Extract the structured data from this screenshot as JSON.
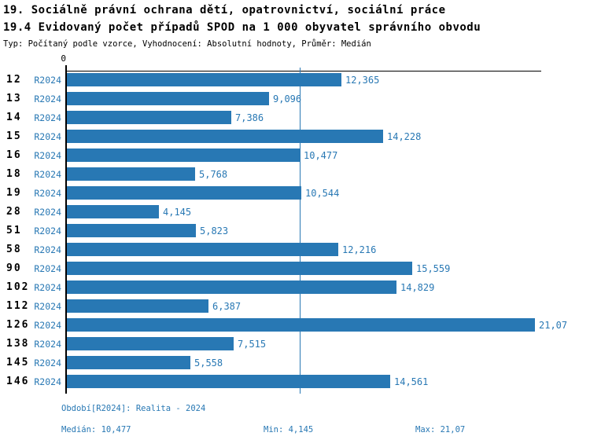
{
  "header": {
    "title1": "19. Sociálně právní ochrana dětí, opatrovnictví, sociální práce",
    "title2": "19.4 Evidovaný počet případů SPOD na 1 000 obyvatel správního obvodu",
    "meta": "Typ: Počítaný podle vzorce, Vyhodnocení: Absolutní hodnoty, Průměr: Medián"
  },
  "chart_data": {
    "type": "bar",
    "orientation": "horizontal",
    "title": "19.4 Evidovaný počet případů SPOD na 1 000 obyvatel správního obvodu",
    "series_label": "R2024",
    "categories": [
      "12",
      "13",
      "14",
      "15",
      "16",
      "18",
      "19",
      "28",
      "51",
      "58",
      "90",
      "102",
      "112",
      "126",
      "138",
      "145",
      "146"
    ],
    "values": [
      12.365,
      9.096,
      7.386,
      14.228,
      10.477,
      5.768,
      10.544,
      4.145,
      5.823,
      12.216,
      15.559,
      14.829,
      6.387,
      21.07,
      7.515,
      5.558,
      14.561
    ],
    "value_labels": [
      "12,365",
      "9,096",
      "7,386",
      "14,228",
      "10,477",
      "5,768",
      "10,544",
      "4,145",
      "5,823",
      "12,216",
      "15,559",
      "14,829",
      "6,387",
      "21,07",
      "7,515",
      "5,558",
      "14,561"
    ],
    "axis": {
      "zero_label": "0",
      "xlim": [
        0,
        21.32
      ],
      "grid": false
    },
    "median_value": 10.477,
    "colors": {
      "bar": "#2878b4",
      "median_line": "#2878b4",
      "value_text": "#2878b4",
      "axis": "#000000"
    }
  },
  "footer": {
    "period": "Období[R2024]: Realita - 2024",
    "median": "Medián: 10,477",
    "min": "Min: 4,145",
    "max": "Max: 21,07"
  }
}
